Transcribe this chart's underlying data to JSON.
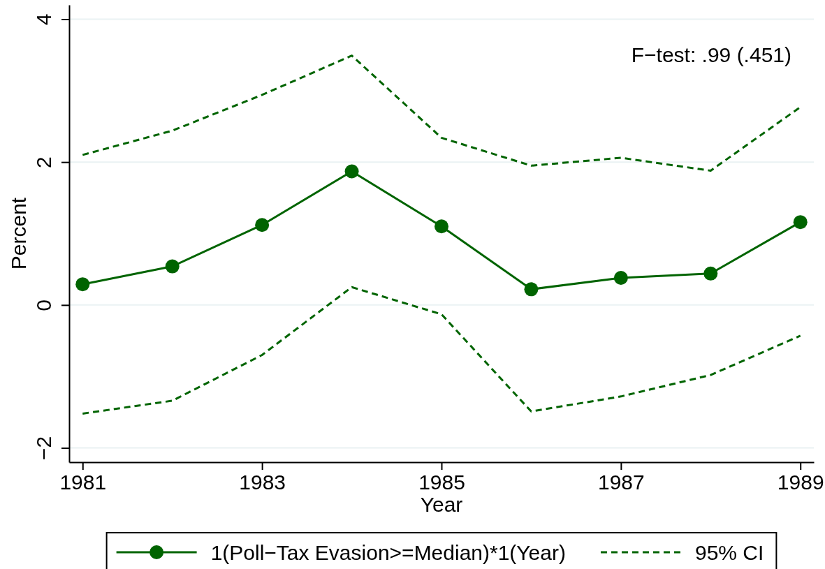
{
  "chart_data": {
    "type": "line",
    "x": [
      1981,
      1982,
      1983,
      1984,
      1985,
      1986,
      1987,
      1988,
      1989
    ],
    "xlim": [
      1980.85,
      1989.15
    ],
    "xticks": [
      1981,
      1983,
      1985,
      1987,
      1989
    ],
    "ylim": [
      -2.2,
      4.2
    ],
    "yticks": [
      {
        "value": -2,
        "label": "−2"
      },
      0,
      2,
      4
    ],
    "xlabel": "Year",
    "ylabel": "Percent",
    "grid": "y",
    "legend": "bottom",
    "annotations": [
      "F−test: .99 (.451)"
    ],
    "series": [
      {
        "name": "1(Poll−Tax Evasion>=Median)*1(Year)",
        "color": "#006400",
        "marker": "circle",
        "line_style": "solid",
        "values": [
          0.29,
          0.54,
          1.12,
          1.87,
          1.1,
          0.22,
          0.38,
          0.44,
          1.16
        ]
      },
      {
        "name": "95% CI",
        "color": "#006400",
        "marker": "none",
        "line_style": "dashed",
        "values": [
          2.1,
          2.44,
          2.94,
          3.49,
          2.34,
          1.95,
          2.06,
          1.88,
          2.77
        ]
      },
      {
        "color": "#006400",
        "marker": "none",
        "line_style": "dashed",
        "values": [
          -1.52,
          -1.34,
          -0.7,
          0.25,
          -0.13,
          -1.49,
          -1.28,
          -0.98,
          -0.43
        ]
      }
    ]
  }
}
